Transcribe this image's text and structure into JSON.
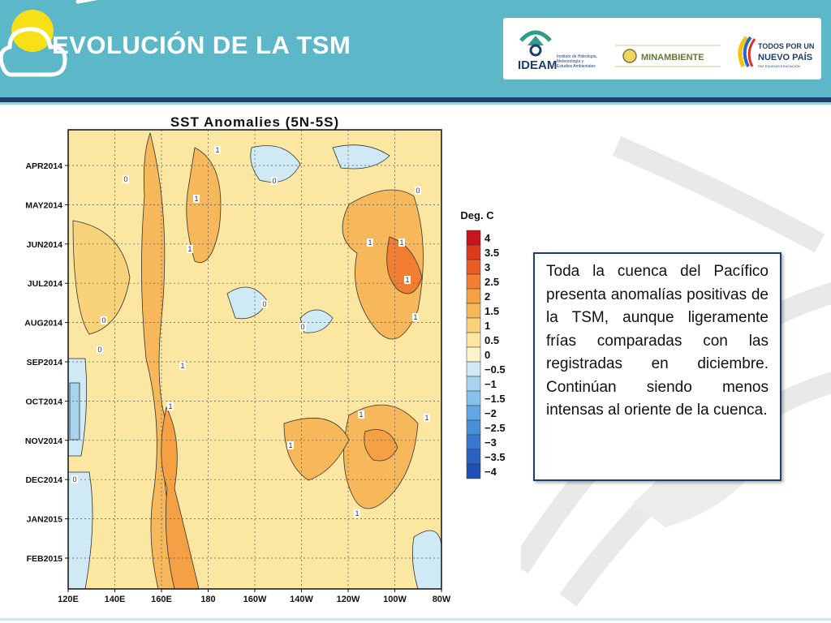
{
  "slide": {
    "title": "EVOLUCIÓN DE LA TSM",
    "description": "Toda la cuenca del Pacífico presenta anomalías positivas de la TSM, aunque ligeramente frías comparadas con las registradas en diciembre. Continúan siendo menos intensas al oriente de la cuenca."
  },
  "logos": {
    "ideam_name": "IDEAM",
    "ideam_subtitle": [
      "Instituto de Hidrología,",
      "Meteorología y",
      "Estudios Ambientales"
    ],
    "minambiente": "MINAMBIENTE",
    "todos_line1": "TODOS POR UN",
    "todos_line2": "NUEVO PAÍS",
    "todos_tagline": "PAZ  EQUIDAD  EDUCACIÓN"
  },
  "colors": {
    "header": "#5cb8c9",
    "header_line": "#1d3f6e",
    "box_border": "#1d3f6e"
  },
  "chart_data": {
    "type": "heatmap",
    "title": "SST Anomalies (5N-5S)",
    "x_ticks": [
      "120E",
      "140E",
      "160E",
      "180",
      "160W",
      "140W",
      "120W",
      "100W",
      "80W"
    ],
    "y_ticks": [
      "APR2014",
      "MAY2014",
      "JUN2014",
      "JUL2014",
      "AUG2014",
      "SEP2014",
      "OCT2014",
      "NOV2014",
      "DEC2014",
      "JAN2015",
      "FEB2015"
    ],
    "legend_title": "Deg. C",
    "legend_levels": [
      "4",
      "3.5",
      "3",
      "2.5",
      "2",
      "1.5",
      "1",
      "0.5",
      "0",
      "−0.5",
      "−1",
      "−1.5",
      "−2",
      "−2.5",
      "−3",
      "−3.5",
      "−4"
    ],
    "legend_colors": [
      "#c8141e",
      "#dc3a1e",
      "#ea5c28",
      "#f27e34",
      "#f5a045",
      "#f6b85a",
      "#f9d27c",
      "#fbe6a2",
      "#fdf4cc",
      "#cfe9f5",
      "#a6d4ef",
      "#86c2ec",
      "#63a8e4",
      "#4a8fda",
      "#3a78cf",
      "#2c63c2",
      "#1f4fb3"
    ],
    "contour_labels": [
      "1",
      "1",
      "1",
      "1",
      "1",
      "1",
      "1",
      "1",
      "1",
      "1",
      "1",
      "1",
      "1",
      "0",
      "0",
      "0",
      "0",
      "0",
      "0",
      "0",
      "0"
    ],
    "grid": true
  }
}
